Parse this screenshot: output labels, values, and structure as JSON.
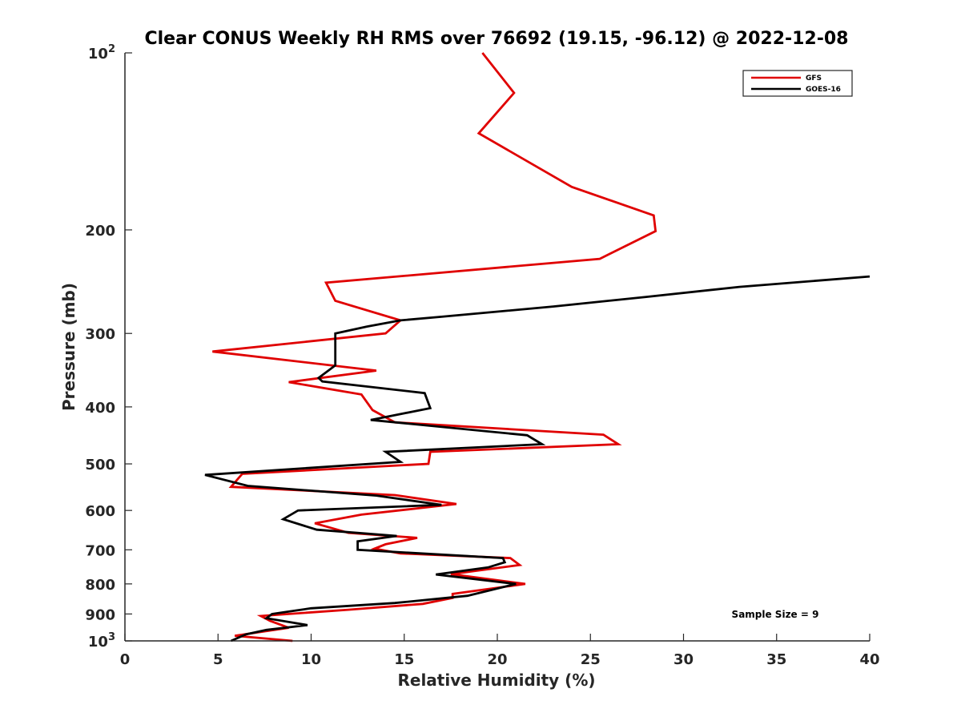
{
  "chart_data": {
    "type": "line",
    "title": "Clear CONUS Weekly RH RMS over 76692 (19.15, -96.12) @ 2022-12-08",
    "xlabel": "Relative Humidity (%)",
    "ylabel": "Pressure (mb)",
    "xlim": [
      0,
      40
    ],
    "ylim": [
      100,
      1000
    ],
    "yscale": "log",
    "y_reversed": true,
    "xticks": [
      0,
      5,
      10,
      15,
      20,
      25,
      30,
      35,
      40
    ],
    "yticks": [
      {
        "value": 100,
        "label": "10",
        "sup": "2"
      },
      {
        "value": 200,
        "label": "200",
        "sup": ""
      },
      {
        "value": 300,
        "label": "300",
        "sup": ""
      },
      {
        "value": 400,
        "label": "400",
        "sup": ""
      },
      {
        "value": 500,
        "label": "500",
        "sup": ""
      },
      {
        "value": 600,
        "label": "600",
        "sup": ""
      },
      {
        "value": 700,
        "label": "700",
        "sup": ""
      },
      {
        "value": 800,
        "label": "800",
        "sup": ""
      },
      {
        "value": 900,
        "label": "900",
        "sup": ""
      },
      {
        "value": 1000,
        "label": "10",
        "sup": "3"
      }
    ],
    "legend_position": "top-right",
    "annotation": "Sample Size = 9",
    "series": [
      {
        "name": "GFS",
        "color": "#e00000",
        "points": [
          [
            19.2,
            100
          ],
          [
            20.9,
            117
          ],
          [
            19.0,
            137
          ],
          [
            24.0,
            169
          ],
          [
            28.4,
            189
          ],
          [
            28.5,
            201
          ],
          [
            25.5,
            224
          ],
          [
            10.8,
            246
          ],
          [
            11.3,
            264
          ],
          [
            14.8,
            285
          ],
          [
            14.0,
            300
          ],
          [
            4.7,
            322
          ],
          [
            13.5,
            347
          ],
          [
            8.8,
            363
          ],
          [
            12.7,
            381
          ],
          [
            13.3,
            405
          ],
          [
            14.5,
            425
          ],
          [
            25.7,
            446
          ],
          [
            26.5,
            463
          ],
          [
            16.4,
            477
          ],
          [
            16.3,
            500
          ],
          [
            6.3,
            520
          ],
          [
            5.7,
            547
          ],
          [
            14.5,
            565
          ],
          [
            17.8,
            585
          ],
          [
            12.7,
            610
          ],
          [
            10.2,
            631
          ],
          [
            12.0,
            655
          ],
          [
            15.7,
            668
          ],
          [
            14.0,
            685
          ],
          [
            13.4,
            697
          ],
          [
            14.8,
            710
          ],
          [
            20.7,
            723
          ],
          [
            21.2,
            743
          ],
          [
            17.5,
            770
          ],
          [
            21.5,
            800
          ],
          [
            17.6,
            832
          ],
          [
            17.6,
            845
          ],
          [
            16.0,
            865
          ],
          [
            12.0,
            885
          ],
          [
            7.3,
            907
          ],
          [
            7.8,
            925
          ],
          [
            8.8,
            950
          ],
          [
            5.9,
            980
          ],
          [
            9.0,
            1000
          ]
        ]
      },
      {
        "name": "GOES-16",
        "color": "#000000",
        "points": [
          [
            40.0,
            240
          ],
          [
            33.0,
            250
          ],
          [
            28.0,
            260
          ],
          [
            23.0,
            270
          ],
          [
            17.0,
            281
          ],
          [
            14.8,
            285
          ],
          [
            13.0,
            292
          ],
          [
            11.3,
            300
          ],
          [
            11.3,
            340
          ],
          [
            10.4,
            357
          ],
          [
            10.6,
            362
          ],
          [
            16.1,
            379
          ],
          [
            16.4,
            402
          ],
          [
            13.2,
            421
          ],
          [
            21.6,
            447
          ],
          [
            22.4,
            463
          ],
          [
            14.0,
            477
          ],
          [
            14.8,
            496
          ],
          [
            4.3,
            522
          ],
          [
            6.6,
            545
          ],
          [
            13.5,
            566
          ],
          [
            17.0,
            587
          ],
          [
            9.3,
            600
          ],
          [
            8.5,
            621
          ],
          [
            10.3,
            647
          ],
          [
            14.6,
            663
          ],
          [
            12.5,
            677
          ],
          [
            12.5,
            700
          ],
          [
            20.3,
            723
          ],
          [
            20.4,
            735
          ],
          [
            19.5,
            750
          ],
          [
            16.7,
            771
          ],
          [
            21.0,
            800
          ],
          [
            18.4,
            838
          ],
          [
            14.5,
            862
          ],
          [
            10.0,
            880
          ],
          [
            7.9,
            900
          ],
          [
            7.6,
            915
          ],
          [
            9.8,
            940
          ],
          [
            7.6,
            958
          ],
          [
            6.5,
            975
          ],
          [
            5.7,
            1000
          ]
        ]
      }
    ]
  }
}
